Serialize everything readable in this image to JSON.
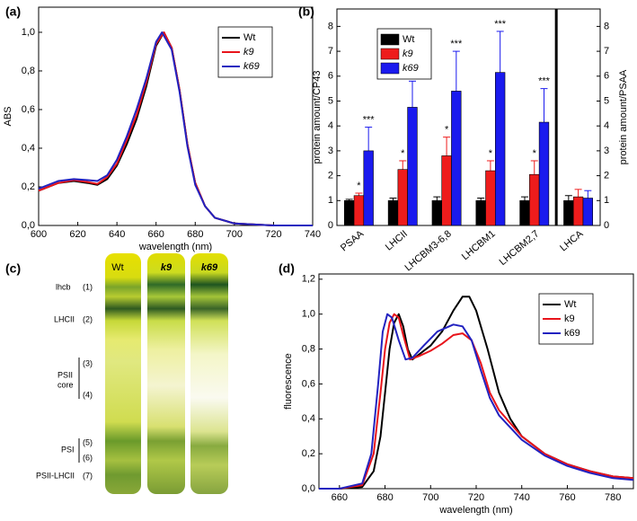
{
  "chart_data": [
    {
      "type": "line",
      "label": "(a)",
      "xlabel": "wavelength (nm)",
      "ylabel": "ABS",
      "xlim": [
        600,
        740
      ],
      "xticks": [
        600,
        620,
        640,
        660,
        680,
        700,
        720,
        740
      ],
      "ylim": [
        0,
        1.13
      ],
      "yticks": [
        {
          "value": 0,
          "label": "0,0"
        },
        {
          "value": 0.2,
          "label": "0,2"
        },
        {
          "value": 0.4,
          "label": "0,4"
        },
        {
          "value": 0.6,
          "label": "0,6"
        },
        {
          "value": 0.8,
          "label": "0,8"
        },
        {
          "value": 1.0,
          "label": "1,0"
        }
      ],
      "legend": "upper right",
      "series": [
        {
          "name": "Wt",
          "color": "#000000",
          "x": [
            600,
            610,
            618,
            625,
            630,
            635,
            640,
            645,
            650,
            655,
            660,
            664,
            668,
            672,
            676,
            680,
            685,
            690,
            700,
            710,
            720,
            740
          ],
          "values": [
            0.18,
            0.22,
            0.23,
            0.22,
            0.21,
            0.24,
            0.31,
            0.42,
            0.55,
            0.72,
            0.93,
            1.0,
            0.92,
            0.7,
            0.42,
            0.22,
            0.1,
            0.04,
            0.01,
            0.005,
            0,
            0
          ]
        },
        {
          "name": "k9",
          "color": "#e8141b",
          "x": [
            600,
            610,
            618,
            625,
            630,
            635,
            640,
            645,
            650,
            655,
            660,
            664,
            668,
            672,
            676,
            680,
            685,
            690,
            700,
            710,
            720,
            740
          ],
          "values": [
            0.18,
            0.22,
            0.235,
            0.225,
            0.215,
            0.25,
            0.32,
            0.44,
            0.57,
            0.74,
            0.94,
            1.0,
            0.92,
            0.7,
            0.42,
            0.22,
            0.1,
            0.04,
            0.01,
            0.005,
            0,
            0
          ]
        },
        {
          "name": "k69",
          "color": "#2222c0",
          "x": [
            600,
            610,
            618,
            625,
            630,
            635,
            640,
            645,
            650,
            655,
            660,
            663,
            668,
            672,
            676,
            680,
            685,
            690,
            700,
            710,
            720,
            740
          ],
          "values": [
            0.19,
            0.23,
            0.24,
            0.235,
            0.23,
            0.26,
            0.34,
            0.46,
            0.6,
            0.76,
            0.95,
            1.0,
            0.91,
            0.69,
            0.41,
            0.21,
            0.1,
            0.04,
            0.01,
            0.005,
            0,
            0
          ]
        }
      ]
    },
    {
      "type": "bar",
      "label": "(b)",
      "ylabel": "protein amount/CP43",
      "y2label": "protein amount/PSAA",
      "categories": [
        "PSAA",
        "LHCII",
        "LHCBM3-6,8",
        "LHCBM1",
        "LHCBM2,7",
        "LHCA"
      ],
      "ylim": [
        0,
        8.7
      ],
      "yticks": [
        0,
        1,
        2,
        3,
        4,
        5,
        6,
        7,
        8
      ],
      "y2lim": [
        0,
        8.7
      ],
      "y2ticks": [
        0,
        1,
        2,
        3,
        4,
        5,
        6,
        7,
        8
      ],
      "legend": "upper left",
      "series": [
        {
          "name": "Wt",
          "color": "#000000",
          "values": [
            1,
            1,
            1,
            1,
            1,
            1
          ],
          "errors": [
            0.05,
            0.1,
            0.15,
            0.1,
            0.15,
            0.2
          ],
          "significance": [
            null,
            null,
            null,
            null,
            null,
            null
          ]
        },
        {
          "name": "k9",
          "color": "#ee1c1c",
          "values": [
            1.2,
            2.25,
            2.8,
            2.2,
            2.05,
            1.15
          ],
          "errors": [
            0.1,
            0.35,
            0.75,
            0.4,
            0.55,
            0.3
          ],
          "significance": [
            "*",
            "*",
            "*",
            "*",
            "*",
            null
          ]
        },
        {
          "name": "k69",
          "color": "#1a1aee",
          "values": [
            3.0,
            4.75,
            5.4,
            6.15,
            4.15,
            1.1
          ],
          "errors": [
            0.95,
            1.05,
            1.6,
            1.65,
            1.35,
            0.3
          ],
          "significance": [
            "***",
            "***",
            "***",
            "***",
            "***",
            null
          ]
        }
      ]
    },
    {
      "type": "line",
      "label": "(d)",
      "xlabel": "wavelength (nm)",
      "ylabel": "fluorescence",
      "xlim": [
        651,
        789
      ],
      "xticks": [
        660,
        680,
        700,
        720,
        740,
        760,
        780
      ],
      "ylim": [
        0,
        1.23
      ],
      "yticks": [
        {
          "value": 0,
          "label": "0,0"
        },
        {
          "value": 0.2,
          "label": "0,2"
        },
        {
          "value": 0.4,
          "label": "0,4"
        },
        {
          "value": 0.6,
          "label": "0,6"
        },
        {
          "value": 0.8,
          "label": "0,8"
        },
        {
          "value": 1.0,
          "label": "1,0"
        },
        {
          "value": 1.2,
          "label": "1,2"
        }
      ],
      "legend": "upper right",
      "series": [
        {
          "name": "Wt",
          "color": "#000000",
          "x": [
            651,
            660,
            670,
            675,
            678,
            680,
            682,
            684,
            686,
            688,
            690,
            692,
            695,
            700,
            705,
            710,
            714,
            717,
            720,
            725,
            730,
            735,
            740,
            750,
            760,
            770,
            780,
            789
          ],
          "values": [
            0,
            0,
            0.01,
            0.1,
            0.3,
            0.55,
            0.8,
            0.95,
            1.0,
            0.93,
            0.8,
            0.74,
            0.77,
            0.82,
            0.9,
            1.02,
            1.1,
            1.1,
            1.02,
            0.8,
            0.55,
            0.4,
            0.3,
            0.2,
            0.14,
            0.1,
            0.07,
            0.06
          ]
        },
        {
          "name": "k9",
          "color": "#e8141b",
          "x": [
            651,
            660,
            670,
            675,
            678,
            680,
            682,
            684,
            686,
            688,
            691,
            695,
            700,
            705,
            710,
            714,
            718,
            722,
            726,
            730,
            740,
            750,
            760,
            770,
            780,
            789
          ],
          "values": [
            0,
            0,
            0.02,
            0.2,
            0.55,
            0.8,
            0.95,
            1.0,
            0.98,
            0.88,
            0.74,
            0.76,
            0.79,
            0.83,
            0.88,
            0.89,
            0.85,
            0.72,
            0.55,
            0.45,
            0.3,
            0.2,
            0.14,
            0.1,
            0.07,
            0.06
          ]
        },
        {
          "name": "k69",
          "color": "#2222c0",
          "x": [
            651,
            660,
            670,
            674,
            677,
            679,
            681,
            683,
            686,
            689,
            692,
            697,
            703,
            710,
            714,
            718,
            722,
            726,
            730,
            740,
            750,
            760,
            770,
            780,
            789
          ],
          "values": [
            0,
            0,
            0.03,
            0.2,
            0.6,
            0.9,
            1.0,
            0.98,
            0.85,
            0.74,
            0.75,
            0.82,
            0.9,
            0.94,
            0.93,
            0.85,
            0.68,
            0.52,
            0.42,
            0.28,
            0.19,
            0.13,
            0.09,
            0.06,
            0.05
          ]
        }
      ]
    }
  ],
  "photo": {
    "label": "(c)",
    "columns": [
      "Wt",
      "k9",
      "k69"
    ],
    "bands": [
      {
        "name": [
          "lhcb"
        ],
        "numbers": [
          "(1)"
        ]
      },
      {
        "name": [
          "LHCII"
        ],
        "numbers": [
          "(2)"
        ]
      },
      {
        "name": [
          "PSII",
          "core"
        ],
        "numbers": [
          "(3)",
          "(4)"
        ]
      },
      {
        "name": [
          "PSI"
        ],
        "numbers": [
          "(5)",
          "(6)"
        ]
      },
      {
        "name": [
          "PSII-LHCII"
        ],
        "numbers": [
          "(7)"
        ]
      }
    ]
  }
}
